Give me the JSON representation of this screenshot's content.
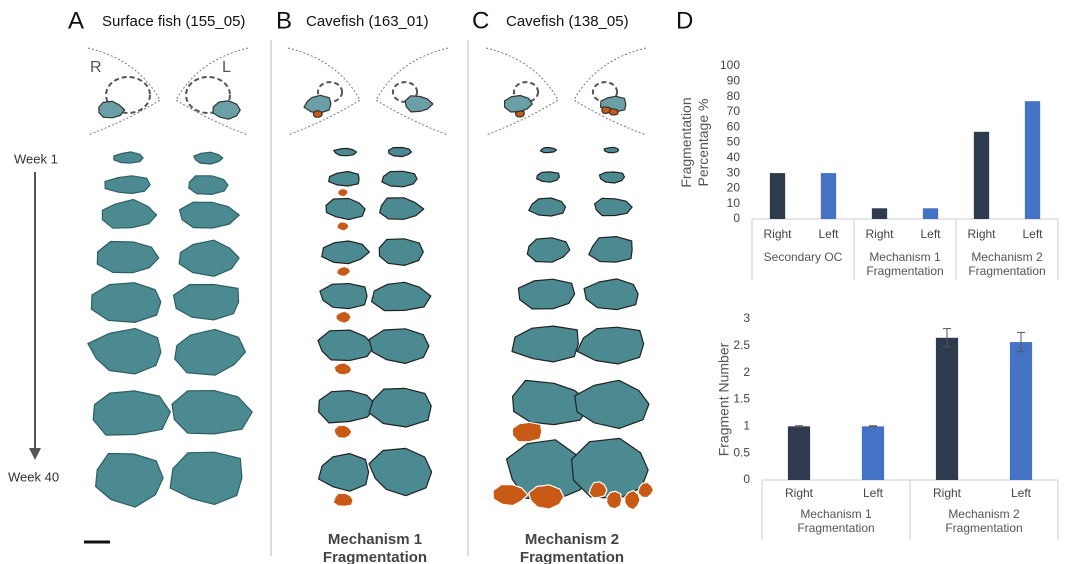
{
  "panels": [
    {
      "letter": "A",
      "title": "Surface fish (155_05)"
    },
    {
      "letter": "B",
      "title": "Cavefish (163_01)",
      "caption": [
        "Mechanism 1",
        "Fragmentation"
      ]
    },
    {
      "letter": "C",
      "title": "Cavefish (138_05)",
      "caption": [
        "Mechanism 2",
        "Fragmentation"
      ]
    },
    {
      "letter": "D"
    }
  ],
  "side_labels": {
    "right": "R",
    "left": "L",
    "start": "Week 1",
    "end": "Week 40"
  },
  "chart_data": [
    {
      "type": "bar",
      "y_label": [
        "Fragmentation",
        "Percentage %"
      ],
      "colors": [
        "#2e3b4e",
        "#4472c4"
      ],
      "groups": [
        {
          "name": [
            "Secondary OC"
          ],
          "categories": [
            "Right",
            "Left"
          ],
          "values": [
            30,
            30
          ]
        },
        {
          "name": [
            "Mechanism 1",
            "Fragmentation"
          ],
          "categories": [
            "Right",
            "Left"
          ],
          "values": [
            7,
            7
          ]
        },
        {
          "name": [
            "Mechanism 2",
            "Fragmentation"
          ],
          "categories": [
            "Right",
            "Left"
          ],
          "values": [
            57,
            77
          ]
        }
      ],
      "ylim": [
        0,
        100
      ],
      "yticks": [
        0,
        10,
        20,
        30,
        40,
        50,
        60,
        70,
        80,
        90,
        100
      ]
    },
    {
      "type": "bar",
      "y_label": [
        "Fragment Number"
      ],
      "colors": [
        "#2e3b4e",
        "#4472c4"
      ],
      "groups": [
        {
          "name": [
            "Mechanism 1",
            "Fragmentation"
          ],
          "categories": [
            "Right",
            "Left"
          ],
          "values": [
            1,
            1
          ],
          "errors": [
            0.01,
            0.01
          ]
        },
        {
          "name": [
            "Mechanism 2",
            "Fragmentation"
          ],
          "categories": [
            "Right",
            "Left"
          ],
          "values": [
            2.65,
            2.57
          ],
          "errors": [
            0.17,
            0.18
          ]
        }
      ],
      "ylim": [
        0,
        3
      ],
      "yticks": [
        0,
        0.5,
        1,
        1.5,
        2,
        2.5,
        3
      ]
    }
  ]
}
